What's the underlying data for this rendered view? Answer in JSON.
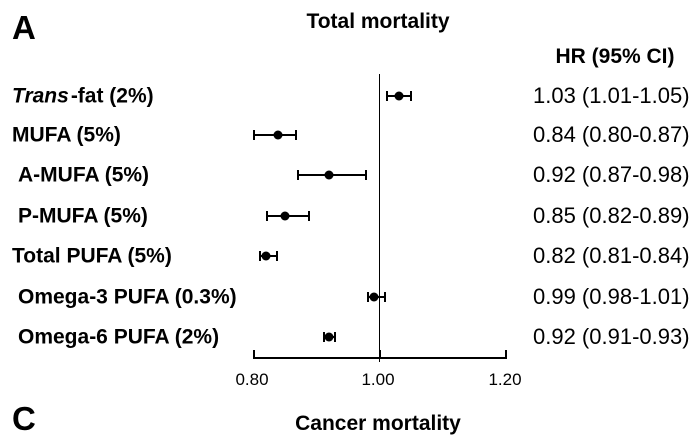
{
  "panel_a": {
    "letter": "A",
    "title": "Total mortality",
    "hr_header": "HR (95% CI)"
  },
  "panel_c": {
    "letter": "C",
    "title": "Cancer mortality"
  },
  "chart_data": {
    "type": "forest",
    "title": "Total mortality",
    "hr_column_header": "HR (95% CI)",
    "xlim": [
      0.8,
      1.2
    ],
    "xticks": [
      0.8,
      1.0,
      1.2
    ],
    "xtick_labels": [
      "0.80",
      "1.00",
      "1.20"
    ],
    "reference_line": 1.0,
    "grid": false,
    "rows": [
      {
        "label": "Trans-fat (2%)",
        "italic_prefix": "Trans",
        "label_rest": "-fat (2%)",
        "indent": false,
        "hr": 1.03,
        "ci_low": 1.01,
        "ci_high": 1.05,
        "hr_text": "1.03 (1.01-1.05)"
      },
      {
        "label": "MUFA (5%)",
        "indent": false,
        "hr": 0.84,
        "ci_low": 0.8,
        "ci_high": 0.87,
        "hr_text": "0.84 (0.80-0.87)"
      },
      {
        "label": "A-MUFA (5%)",
        "indent": true,
        "hr": 0.92,
        "ci_low": 0.87,
        "ci_high": 0.98,
        "hr_text": "0.92 (0.87-0.98)"
      },
      {
        "label": "P-MUFA (5%)",
        "indent": true,
        "hr": 0.85,
        "ci_low": 0.82,
        "ci_high": 0.89,
        "hr_text": "0.85 (0.82-0.89)"
      },
      {
        "label": "Total PUFA (5%)",
        "indent": false,
        "hr": 0.82,
        "ci_low": 0.81,
        "ci_high": 0.84,
        "hr_text": "0.82 (0.81-0.84)"
      },
      {
        "label": "Omega-3 PUFA (0.3%)",
        "indent": true,
        "hr": 0.99,
        "ci_low": 0.98,
        "ci_high": 1.01,
        "hr_text": "0.99 (0.98-1.01)"
      },
      {
        "label": "Omega-6 PUFA (2%)",
        "indent": true,
        "hr": 0.92,
        "ci_low": 0.91,
        "ci_high": 0.93,
        "hr_text": "0.92 (0.91-0.93)"
      }
    ],
    "colors": {
      "foreground": "#000000",
      "background": "#ffffff"
    }
  }
}
